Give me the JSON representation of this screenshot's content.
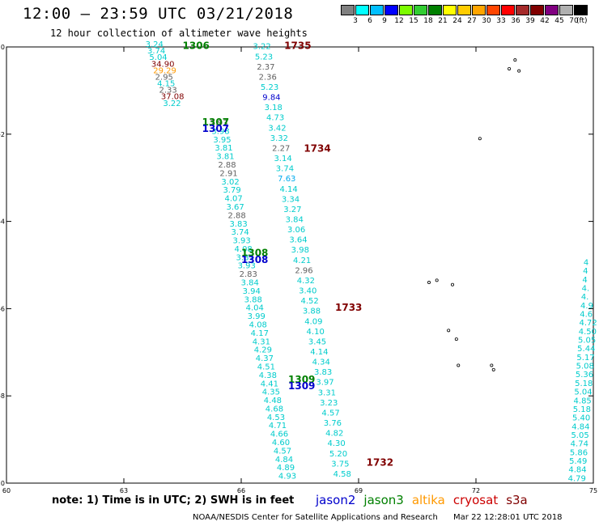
{
  "header": {
    "title": "12:00 – 23:59 UTC 03/21/2018",
    "subtitle": "12 hour collection of altimeter wave heights"
  },
  "colorbar": {
    "colors": [
      "#808080",
      "#00ffff",
      "#00bfff",
      "#0000ff",
      "#7cfc00",
      "#32cd32",
      "#008000",
      "#ffff00",
      "#ffcc00",
      "#ffa500",
      "#ff4500",
      "#ff0000",
      "#a52a2a",
      "#800000",
      "#800080",
      "#b0b0b0",
      "#000000"
    ],
    "labels": [
      "3",
      "6",
      "9",
      "12",
      "15",
      "18",
      "21",
      "24",
      "27",
      "30",
      "33",
      "36",
      "39",
      "42",
      "45",
      "70"
    ],
    "units": "(ft)"
  },
  "chart_data": {
    "type": "map",
    "xlim": [
      60,
      75
    ],
    "ylim": [
      -10,
      0
    ],
    "xticks": [
      "60",
      "63",
      "66",
      "69",
      "72",
      "75"
    ],
    "yticks": [
      "0",
      "-2",
      "-4",
      "-6",
      "-8",
      "-10"
    ],
    "pass_labels": [
      {
        "text": "1306",
        "lon": 64.5,
        "lat": -0.05,
        "color": "#008000"
      },
      {
        "text": "1735",
        "lon": 67.1,
        "lat": -0.05,
        "color": "#800000"
      },
      {
        "text": "1307",
        "lon": 65.0,
        "lat": -1.8,
        "color": "#008000"
      },
      {
        "text": "1307",
        "lon": 65.0,
        "lat": -1.95,
        "color": "#0000cc"
      },
      {
        "text": "1734",
        "lon": 67.6,
        "lat": -2.4,
        "color": "#800000"
      },
      {
        "text": "1308",
        "lon": 66.0,
        "lat": -4.8,
        "color": "#008000"
      },
      {
        "text": "1308",
        "lon": 66.0,
        "lat": -4.95,
        "color": "#0000cc"
      },
      {
        "text": "1733",
        "lon": 68.4,
        "lat": -6.05,
        "color": "#800000"
      },
      {
        "text": "1309",
        "lon": 67.2,
        "lat": -7.7,
        "color": "#008000"
      },
      {
        "text": "1309",
        "lon": 67.2,
        "lat": -7.85,
        "color": "#0000cc"
      },
      {
        "text": "1732",
        "lon": 69.2,
        "lat": -9.6,
        "color": "#800000"
      }
    ],
    "track_a": {
      "labels": [
        {
          "text": "3.24",
          "color": "#00cccc"
        },
        {
          "text": "3.74",
          "color": "#00cccc"
        },
        {
          "text": "5.04",
          "color": "#00cccc"
        },
        {
          "text": "34.90",
          "color": "#800000"
        },
        {
          "text": "29.29",
          "color": "#ff9900"
        },
        {
          "text": "2.95",
          "color": "#606060"
        },
        {
          "text": "4.15",
          "color": "#00cccc"
        },
        {
          "text": "2.33",
          "color": "#606060"
        },
        {
          "text": "37.08",
          "color": "#800000"
        },
        {
          "text": "3.22",
          "color": "#00cccc"
        }
      ]
    },
    "track_b": {
      "start_lon": 65.2,
      "start_lat": -1.8,
      "labels": [
        {
          "text": "2.93",
          "color": "#606060"
        },
        {
          "text": "3.98",
          "color": "#00cccc"
        },
        {
          "text": "3.95",
          "color": "#00cccc"
        },
        {
          "text": "3.81",
          "color": "#00cccc"
        },
        {
          "text": "3.81",
          "color": "#00cccc"
        },
        {
          "text": "2.88",
          "color": "#606060"
        },
        {
          "text": "2.91",
          "color": "#606060"
        },
        {
          "text": "3.02",
          "color": "#00cccc"
        },
        {
          "text": "3.79",
          "color": "#00cccc"
        },
        {
          "text": "4.07",
          "color": "#00cccc"
        },
        {
          "text": "3.67",
          "color": "#00cccc"
        },
        {
          "text": "2.88",
          "color": "#606060"
        },
        {
          "text": "3.83",
          "color": "#00cccc"
        },
        {
          "text": "3.74",
          "color": "#00cccc"
        },
        {
          "text": "3.93",
          "color": "#00cccc"
        },
        {
          "text": "4.08",
          "color": "#00cccc"
        },
        {
          "text": "3.87",
          "color": "#00cccc"
        },
        {
          "text": "3.93",
          "color": "#00cccc"
        },
        {
          "text": "2.83",
          "color": "#606060"
        },
        {
          "text": "3.84",
          "color": "#00cccc"
        },
        {
          "text": "3.94",
          "color": "#00cccc"
        },
        {
          "text": "3.88",
          "color": "#00cccc"
        },
        {
          "text": "4.04",
          "color": "#00cccc"
        },
        {
          "text": "3.99",
          "color": "#00cccc"
        },
        {
          "text": "4.08",
          "color": "#00cccc"
        },
        {
          "text": "4.17",
          "color": "#00cccc"
        },
        {
          "text": "4.31",
          "color": "#00cccc"
        },
        {
          "text": "4.29",
          "color": "#00cccc"
        },
        {
          "text": "4.37",
          "color": "#00cccc"
        },
        {
          "text": "4.51",
          "color": "#00cccc"
        },
        {
          "text": "4.38",
          "color": "#00cccc"
        },
        {
          "text": "4.41",
          "color": "#00cccc"
        },
        {
          "text": "4.35",
          "color": "#00cccc"
        },
        {
          "text": "4.48",
          "color": "#00cccc"
        },
        {
          "text": "4.68",
          "color": "#00cccc"
        },
        {
          "text": "4.53",
          "color": "#00cccc"
        },
        {
          "text": "4.71",
          "color": "#00cccc"
        },
        {
          "text": "4.66",
          "color": "#00cccc"
        },
        {
          "text": "4.60",
          "color": "#00cccc"
        },
        {
          "text": "4.57",
          "color": "#00cccc"
        },
        {
          "text": "4.84",
          "color": "#00cccc"
        },
        {
          "text": "4.89",
          "color": "#00cccc"
        },
        {
          "text": "4.93",
          "color": "#00cccc"
        }
      ]
    },
    "track_c": {
      "start_lon": 66.3,
      "start_lat": -0.05,
      "labels": [
        {
          "text": "3.22",
          "color": "#00cccc"
        },
        {
          "text": "5.23",
          "color": "#00cccc"
        },
        {
          "text": "2.37",
          "color": "#606060"
        },
        {
          "text": "2.36",
          "color": "#606060"
        },
        {
          "text": "5.23",
          "color": "#00cccc"
        },
        {
          "text": "9.84",
          "color": "#0000cc"
        },
        {
          "text": "3.18",
          "color": "#00cccc"
        },
        {
          "text": "4.73",
          "color": "#00cccc"
        },
        {
          "text": "3.42",
          "color": "#00cccc"
        },
        {
          "text": "3.32",
          "color": "#00cccc"
        },
        {
          "text": "2.27",
          "color": "#606060"
        },
        {
          "text": "3.14",
          "color": "#00cccc"
        },
        {
          "text": "3.74",
          "color": "#00cccc"
        },
        {
          "text": "7.63",
          "color": "#00aaee"
        },
        {
          "text": "4.14",
          "color": "#00cccc"
        },
        {
          "text": "3.34",
          "color": "#00cccc"
        },
        {
          "text": "3.27",
          "color": "#00cccc"
        },
        {
          "text": "3.84",
          "color": "#00cccc"
        },
        {
          "text": "3.06",
          "color": "#00cccc"
        },
        {
          "text": "3.64",
          "color": "#00cccc"
        },
        {
          "text": "3.98",
          "color": "#00cccc"
        },
        {
          "text": "4.21",
          "color": "#00cccc"
        },
        {
          "text": "2.96",
          "color": "#606060"
        },
        {
          "text": "4.32",
          "color": "#00cccc"
        },
        {
          "text": "3.40",
          "color": "#00cccc"
        },
        {
          "text": "4.52",
          "color": "#00cccc"
        },
        {
          "text": "3.88",
          "color": "#00cccc"
        },
        {
          "text": "4.09",
          "color": "#00cccc"
        },
        {
          "text": "4.10",
          "color": "#00cccc"
        },
        {
          "text": "3.45",
          "color": "#00cccc"
        },
        {
          "text": "4.14",
          "color": "#00cccc"
        },
        {
          "text": "4.34",
          "color": "#00cccc"
        },
        {
          "text": "3.83",
          "color": "#00cccc"
        },
        {
          "text": "3.97",
          "color": "#00cccc"
        },
        {
          "text": "3.31",
          "color": "#00cccc"
        },
        {
          "text": "3.23",
          "color": "#00cccc"
        },
        {
          "text": "4.57",
          "color": "#00cccc"
        },
        {
          "text": "3.76",
          "color": "#00cccc"
        },
        {
          "text": "4.82",
          "color": "#00cccc"
        },
        {
          "text": "4.30",
          "color": "#00cccc"
        },
        {
          "text": "5.20",
          "color": "#00cccc"
        },
        {
          "text": "3.75",
          "color": "#00cccc"
        },
        {
          "text": "4.58",
          "color": "#00cccc"
        }
      ]
    },
    "track_d": {
      "labels": [
        {
          "text": "4",
          "color": "#00cccc"
        },
        {
          "text": "4",
          "color": "#00cccc"
        },
        {
          "text": "4",
          "color": "#00cccc"
        },
        {
          "text": "4.",
          "color": "#00cccc"
        },
        {
          "text": "4.",
          "color": "#00cccc"
        },
        {
          "text": "4.9",
          "color": "#00cccc"
        },
        {
          "text": "4.6",
          "color": "#00cccc"
        },
        {
          "text": "4.72",
          "color": "#00cccc"
        },
        {
          "text": "4.50",
          "color": "#00cccc"
        },
        {
          "text": "5.05",
          "color": "#00cccc"
        },
        {
          "text": "5.44",
          "color": "#00cccc"
        },
        {
          "text": "5.17",
          "color": "#00cccc"
        },
        {
          "text": "5.08",
          "color": "#00cccc"
        },
        {
          "text": "5.36",
          "color": "#00cccc"
        },
        {
          "text": "5.18",
          "color": "#00cccc"
        },
        {
          "text": "5.04",
          "color": "#00cccc"
        },
        {
          "text": "4.85",
          "color": "#00cccc"
        },
        {
          "text": "5.18",
          "color": "#00cccc"
        },
        {
          "text": "5.40",
          "color": "#00cccc"
        },
        {
          "text": "4.84",
          "color": "#00cccc"
        },
        {
          "text": "5.05",
          "color": "#00cccc"
        },
        {
          "text": "4.74",
          "color": "#00cccc"
        },
        {
          "text": "5.86",
          "color": "#00cccc"
        },
        {
          "text": "5.49",
          "color": "#00cccc"
        },
        {
          "text": "4.84",
          "color": "#00cccc"
        },
        {
          "text": "4.79",
          "color": "#00cccc"
        }
      ]
    }
  },
  "note": "note: 1) Time is in UTC; 2) SWH is in feet",
  "legend": [
    {
      "label": "jason2",
      "color": "#0000cc"
    },
    {
      "label": "jason3",
      "color": "#008000"
    },
    {
      "label": "altika",
      "color": "#ff9900"
    },
    {
      "label": "cryosat",
      "color": "#cc0000"
    },
    {
      "label": "s3a",
      "color": "#800000"
    }
  ],
  "footer": {
    "agency": "NOAA/NESDIS Center for Satellite Applications and Research",
    "timestamp": "Mar 22 12:28:01 UTC 2018"
  }
}
